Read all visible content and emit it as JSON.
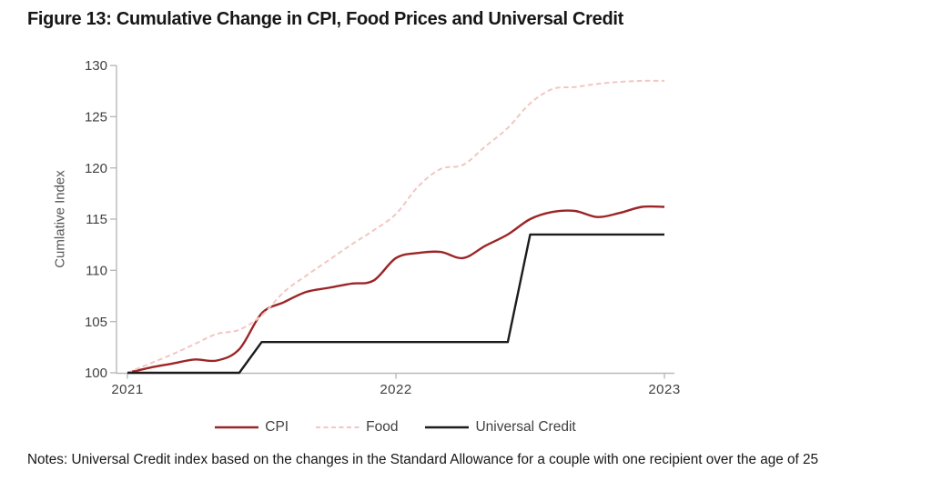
{
  "title": "Figure 13: Cumulative Change in CPI, Food Prices and Universal Credit",
  "notes": "Notes: Universal Credit index based on the changes in the Standard Allowance for a couple with one recipient over the age of 25",
  "colors": {
    "cpi_line": "#9c2527",
    "food_line": "#f2c7c2",
    "uc_line": "#1c1c1c",
    "axis": "#b9b9b9",
    "tick_label": "#414141",
    "axis_title": "#555555",
    "text": "#161616",
    "background": "#ffffff"
  },
  "chart_data": {
    "type": "line",
    "title": "Figure 13: Cumulative Change in CPI, Food Prices and Universal Credit",
    "xlabel": "",
    "ylabel": "Cumlative Index",
    "ylim": [
      100,
      130
    ],
    "yticks": [
      100,
      105,
      110,
      115,
      120,
      125,
      130
    ],
    "grid": false,
    "legend_position": "bottom",
    "x_months": [
      "Jan 2021",
      "Feb 2021",
      "Mar 2021",
      "Apr 2021",
      "May 2021",
      "Jun 2021",
      "Jul 2021",
      "Aug 2021",
      "Sep 2021",
      "Oct 2021",
      "Nov 2021",
      "Dec 2021",
      "Jan 2022",
      "Feb 2022",
      "Mar 2022",
      "Apr 2022",
      "May 2022",
      "Jun 2022",
      "Jul 2022",
      "Aug 2022",
      "Sep 2022",
      "Oct 2022",
      "Nov 2022",
      "Dec 2022",
      "Jan 2023"
    ],
    "xticks": [
      {
        "label": "2021",
        "month_index": 0
      },
      {
        "label": "2022",
        "month_index": 12
      },
      {
        "label": "2023",
        "month_index": 24
      }
    ],
    "series": [
      {
        "name": "CPI",
        "color": "#9c2527",
        "style": "solid",
        "smooth": true,
        "values": [
          100.0,
          100.5,
          100.9,
          101.3,
          101.2,
          102.3,
          105.8,
          106.9,
          107.9,
          108.3,
          108.7,
          109.0,
          111.2,
          111.7,
          111.8,
          111.2,
          112.4,
          113.5,
          115.0,
          115.7,
          115.8,
          115.2,
          115.6,
          116.2,
          116.2
        ]
      },
      {
        "name": "Food",
        "color": "#f2c7c2",
        "style": "dashed",
        "smooth": true,
        "values": [
          100.0,
          100.9,
          101.8,
          102.8,
          103.8,
          104.2,
          105.6,
          107.9,
          109.5,
          111.0,
          112.5,
          113.9,
          115.5,
          118.2,
          119.9,
          120.3,
          122.1,
          123.9,
          126.3,
          127.7,
          127.9,
          128.2,
          128.4,
          128.5,
          128.5
        ]
      },
      {
        "name": "Universal Credit",
        "color": "#1c1c1c",
        "style": "solid",
        "smooth": false,
        "values": [
          100,
          100,
          100,
          100,
          100,
          100,
          103,
          103,
          103,
          103,
          103,
          103,
          103,
          103,
          103,
          103,
          103,
          103,
          113.5,
          113.5,
          113.5,
          113.5,
          113.5,
          113.5,
          113.5
        ]
      }
    ]
  }
}
